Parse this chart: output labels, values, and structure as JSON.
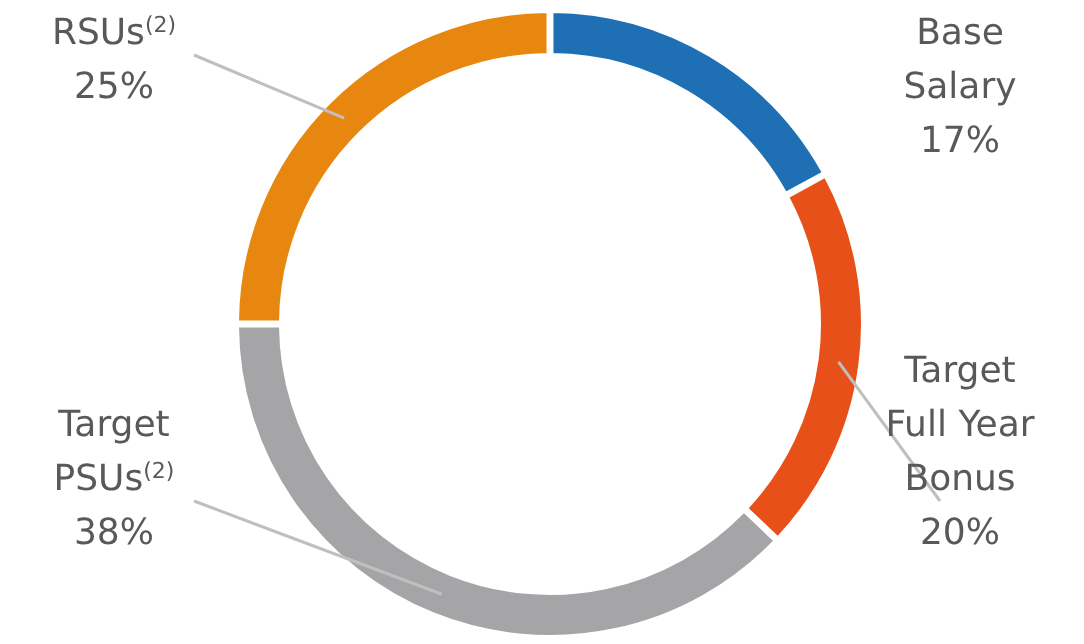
{
  "chart_data": {
    "type": "donut",
    "categories": [
      "Base Salary",
      "Target Full Year Bonus",
      "Target PSUs$^{(2)}$",
      "RSUs$^{(2)}$"
    ],
    "values": [
      17,
      20,
      38,
      25
    ],
    "value_labels": [
      "17%",
      "20%",
      "38%",
      "25%"
    ],
    "colors": [
      "#1f6fb5",
      "#e8501a",
      "#a5a5a8",
      "#e8870f"
    ]
  }
}
